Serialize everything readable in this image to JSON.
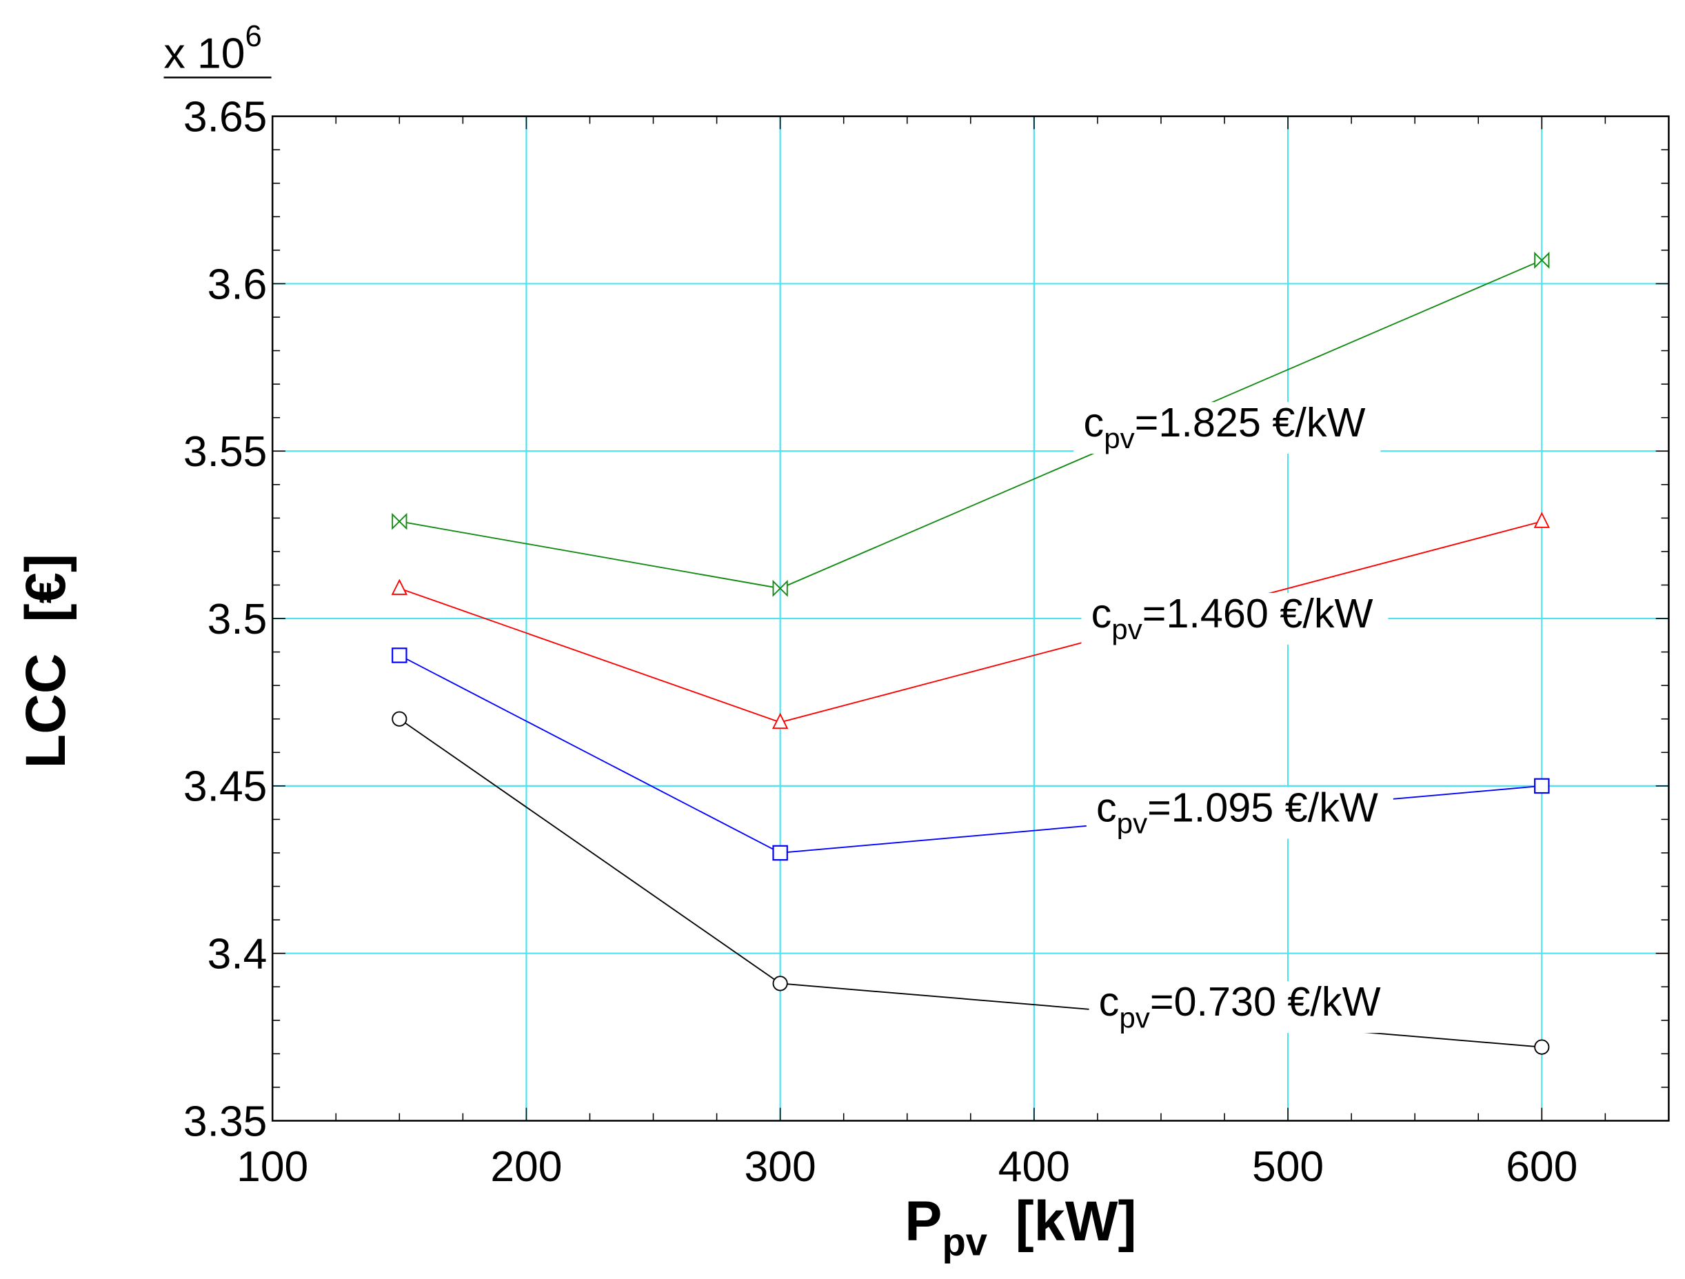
{
  "chart_data": {
    "type": "line",
    "title": "",
    "xlabel": "P",
    "xlabel_sub": "pv",
    "xlabel_unit": "[kW]",
    "ylabel": "LCC  [€]",
    "y_multiplier": "x 10",
    "y_multiplier_exp": "6",
    "xlim": [
      100,
      650
    ],
    "ylim": [
      3.35,
      3.65
    ],
    "x_major_ticks": [
      100,
      200,
      300,
      400,
      500,
      600
    ],
    "x_tick_labels": [
      "100",
      "200",
      "300",
      "400",
      "500",
      "600"
    ],
    "x_minor_step": 25,
    "y_major_ticks": [
      3.35,
      3.4,
      3.45,
      3.5,
      3.55,
      3.6,
      3.65
    ],
    "y_tick_labels": [
      "3.35",
      "3.4",
      "3.45",
      "3.5",
      "3.55",
      "3.6",
      "3.65"
    ],
    "y_minor_step": 0.01,
    "grid": true,
    "grid_color": "#4fe3f0",
    "x": [
      150,
      300,
      600
    ],
    "series": [
      {
        "name": "cpv=1.825 €/kW",
        "label_main": "c",
        "label_sub": "pv",
        "label_rest": "=1.825 €/kW",
        "label_at": [
          475,
          3.555
        ],
        "values": [
          3.529,
          3.509,
          3.607
        ],
        "color": "#138a13",
        "marker": "bowtie"
      },
      {
        "name": "cpv=1.460 €/kW",
        "label_main": "c",
        "label_sub": "pv",
        "label_rest": "=1.460 €/kW",
        "label_at": [
          478,
          3.498
        ],
        "values": [
          3.509,
          3.469,
          3.529
        ],
        "color": "#ff0000",
        "marker": "triangle"
      },
      {
        "name": "cpv=1.095 €/kW",
        "label_main": "c",
        "label_sub": "pv",
        "label_rest": "=1.095 €/kW",
        "label_at": [
          480,
          3.44
        ],
        "values": [
          3.489,
          3.43,
          3.45
        ],
        "color": "#0000ff",
        "marker": "square"
      },
      {
        "name": "cpv=0.730 €/kW",
        "label_main": "c",
        "label_sub": "pv",
        "label_rest": "=0.730 €/kW",
        "label_at": [
          481,
          3.382
        ],
        "values": [
          3.47,
          3.391,
          3.372
        ],
        "color": "#000000",
        "marker": "circle"
      }
    ]
  }
}
